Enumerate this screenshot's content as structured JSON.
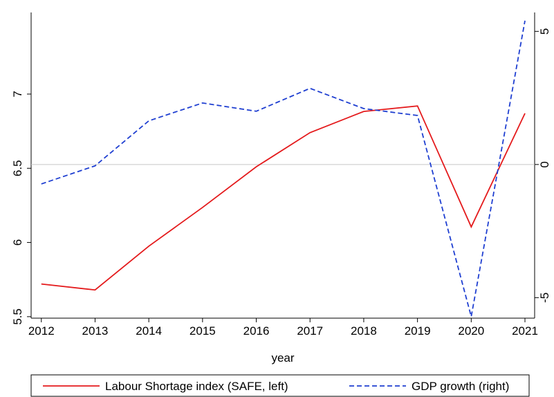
{
  "chart_data": {
    "type": "line",
    "x_label": "year",
    "x": [
      2012,
      2013,
      2014,
      2015,
      2016,
      2017,
      2018,
      2019,
      2020,
      2021
    ],
    "xlim": [
      2011.81,
      2021.18
    ],
    "xticks": [
      2012,
      2013,
      2014,
      2015,
      2016,
      2017,
      2018,
      2019,
      2020,
      2021
    ],
    "ylim": [
      5.49,
      7.55
    ],
    "yticks": [
      5.5,
      6,
      6.5,
      7
    ],
    "y2lim": [
      -5.77,
      5.71
    ],
    "y2ticks": [
      -5,
      0,
      5
    ],
    "series": [
      {
        "name": "Labour Shortage index (SAFE, left)",
        "color": "#e41a1c",
        "dash": false,
        "values": [
          5.72,
          5.68,
          5.975,
          6.236,
          6.51,
          6.74,
          6.883,
          6.92,
          6.105,
          6.87
        ]
      },
      {
        "name": "GDP growth (right)",
        "color": "#1f3fd1",
        "dash": true,
        "axis": "y2",
        "values": [
          -0.73,
          -0.05,
          1.64,
          2.31,
          2.0,
          2.86,
          2.1,
          1.84,
          -5.71,
          5.4
        ]
      }
    ]
  }
}
